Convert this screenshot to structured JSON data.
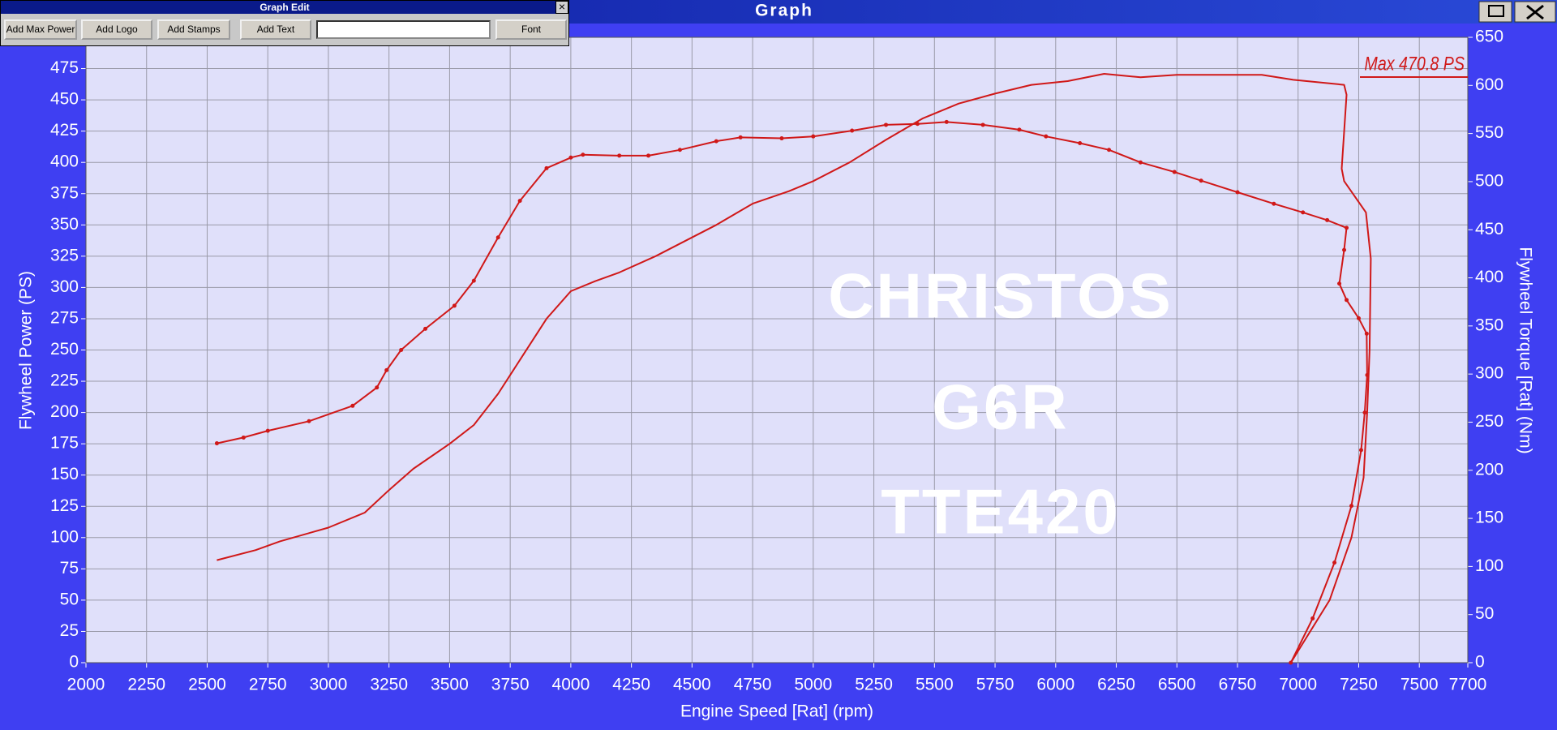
{
  "window": {
    "title": "Graph"
  },
  "toolbar": {
    "title": "Graph Edit",
    "buttons": [
      "Add Max Power",
      "Add Logo",
      "Add Stamps",
      "Add Text",
      "Font"
    ]
  },
  "chart_data": {
    "type": "line",
    "xlabel": "Engine Speed [Rat] (rpm)",
    "ylabel": "Flywheel Power (PS)",
    "y2label": "Flywheel Torque [Rat] (Nm)",
    "annotation": "Max 470.8 PS",
    "watermark": [
      "CHRISTOS",
      "G6R",
      "TTE420"
    ],
    "grid": true,
    "xlim": [
      2000,
      7700
    ],
    "xticks": [
      2000,
      2250,
      2500,
      2750,
      3000,
      3250,
      3500,
      3750,
      4000,
      4250,
      4500,
      4750,
      5000,
      5250,
      5500,
      5750,
      6000,
      6250,
      6500,
      6750,
      7000,
      7250,
      7500,
      7700
    ],
    "ylim": [
      0,
      500
    ],
    "yticks": [
      0,
      25,
      50,
      75,
      100,
      125,
      150,
      175,
      200,
      225,
      250,
      275,
      300,
      325,
      350,
      375,
      400,
      425,
      450,
      475
    ],
    "y2lim": [
      0,
      650
    ],
    "y2ticks": [
      0,
      50,
      100,
      150,
      200,
      250,
      300,
      350,
      400,
      450,
      500,
      550,
      600,
      650
    ],
    "series": [
      {
        "color": "#d01818",
        "markers": true,
        "axis": "y2",
        "x": [
          2540,
          2650,
          2750,
          2920,
          3100,
          3200,
          3240,
          3300,
          3400,
          3520,
          3600,
          3700,
          3790,
          3900,
          4000,
          4050,
          4200,
          4320,
          4450,
          4600,
          4700,
          4870,
          5000,
          5160,
          5300,
          5430,
          5550,
          5700,
          5850,
          5960,
          6100,
          6220,
          6350,
          6490,
          6600,
          6750,
          6900,
          7020,
          7120,
          7200,
          7190,
          7170,
          7200,
          7250,
          7283,
          7285,
          7275,
          7260,
          7220,
          7150,
          7060,
          6970
        ],
        "values": [
          228,
          234,
          241,
          251,
          267,
          286,
          304,
          325,
          347,
          371,
          397,
          442,
          480,
          514,
          525,
          528,
          527,
          527,
          533,
          542,
          546,
          545,
          547,
          553,
          559,
          560,
          562,
          559,
          554,
          547,
          540,
          533,
          520,
          510,
          501,
          489,
          477,
          468,
          460,
          452,
          429,
          394,
          377,
          358,
          342,
          299,
          260,
          221,
          163,
          104,
          46,
          0
        ]
      },
      {
        "color": "#d01818",
        "markers": false,
        "axis": "y",
        "x": [
          2540,
          2700,
          2800,
          3000,
          3150,
          3250,
          3350,
          3500,
          3600,
          3700,
          3800,
          3900,
          4000,
          4100,
          4200,
          4350,
          4500,
          4600,
          4750,
          4900,
          5000,
          5150,
          5300,
          5450,
          5600,
          5750,
          5900,
          6050,
          6200,
          6350,
          6500,
          6850,
          6980,
          7190,
          7200,
          7180,
          7190,
          7215,
          7280,
          7300,
          7295,
          7285,
          7270,
          7220,
          7130,
          6970
        ],
        "values": [
          82,
          90,
          97,
          108,
          120,
          138,
          155,
          175,
          190,
          215,
          245,
          275,
          297,
          305,
          312,
          325,
          340,
          350,
          367,
          377,
          385,
          400,
          418,
          435,
          447,
          455,
          462,
          465,
          470.8,
          468,
          470,
          470,
          466,
          462,
          454,
          395,
          385,
          378,
          360,
          323,
          250,
          200,
          148,
          100,
          50,
          0
        ]
      }
    ]
  }
}
